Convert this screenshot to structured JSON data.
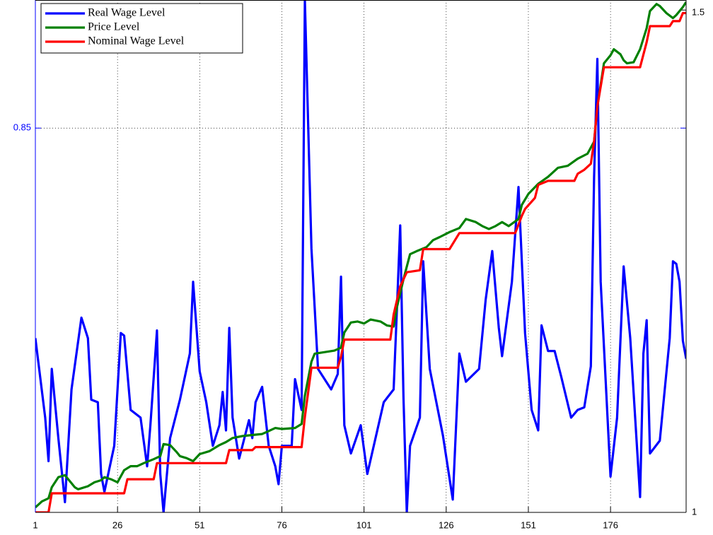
{
  "chart_data": {
    "type": "line",
    "xlim": [
      1,
      199
    ],
    "xticks": [
      1,
      26,
      51,
      76,
      101,
      126,
      151,
      176
    ],
    "ylim": [
      0.7,
      0.9
    ],
    "yticks": [
      0.85
    ],
    "y2lim": [
      1,
      1.51
    ],
    "y2ticks": [
      1,
      1.5
    ],
    "grid": true,
    "legend": "upper left",
    "series": [
      {
        "name": "Real Wage Level",
        "color": "#0000ff",
        "x": [
          1,
          4,
          5,
          6,
          8,
          10,
          12,
          15,
          17,
          18,
          20,
          21,
          22,
          25,
          27,
          28,
          30,
          33,
          35,
          36,
          38,
          39,
          40,
          42,
          45,
          48,
          49,
          51,
          53,
          55,
          57,
          58,
          59,
          60,
          61,
          63,
          66,
          67,
          68,
          70,
          72,
          74,
          75,
          76,
          79,
          80,
          82,
          83,
          85,
          87,
          91,
          93,
          94,
          95,
          97,
          100,
          102,
          107,
          110,
          111,
          112,
          113,
          114,
          115,
          118,
          119,
          121,
          125,
          128,
          130,
          132,
          136,
          138,
          140,
          142,
          143,
          146,
          148,
          150,
          152,
          154,
          155,
          157,
          159,
          161,
          164,
          166,
          168,
          170,
          171,
          172,
          173,
          176,
          178,
          180,
          182,
          185,
          186,
          187,
          188,
          191,
          194,
          195,
          196,
          197,
          198,
          199
        ],
        "values": [
          0.768,
          0.737,
          0.72,
          0.756,
          0.729,
          0.704,
          0.748,
          0.776,
          0.768,
          0.744,
          0.743,
          0.715,
          0.708,
          0.726,
          0.77,
          0.769,
          0.74,
          0.737,
          0.718,
          0.734,
          0.771,
          0.715,
          0.7,
          0.729,
          0.744,
          0.762,
          0.79,
          0.755,
          0.743,
          0.726,
          0.734,
          0.747,
          0.732,
          0.772,
          0.737,
          0.721,
          0.736,
          0.729,
          0.743,
          0.749,
          0.726,
          0.718,
          0.711,
          0.726,
          0.726,
          0.752,
          0.74,
          0.9,
          0.803,
          0.756,
          0.748,
          0.754,
          0.792,
          0.734,
          0.723,
          0.734,
          0.715,
          0.743,
          0.748,
          0.779,
          0.812,
          0.745,
          0.7,
          0.726,
          0.737,
          0.798,
          0.756,
          0.73,
          0.705,
          0.762,
          0.751,
          0.756,
          0.783,
          0.802,
          0.772,
          0.761,
          0.79,
          0.827,
          0.77,
          0.74,
          0.732,
          0.773,
          0.763,
          0.763,
          0.753,
          0.737,
          0.74,
          0.741,
          0.757,
          0.831,
          0.877,
          0.79,
          0.714,
          0.737,
          0.796,
          0.768,
          0.706,
          0.762,
          0.775,
          0.723,
          0.728,
          0.768,
          0.798,
          0.797,
          0.79,
          0.767,
          0.76
        ]
      },
      {
        "name": "Price Level",
        "color": "#008000",
        "axis": "y2",
        "x": [
          1,
          3,
          5,
          6,
          8,
          10,
          11,
          13,
          14,
          17,
          19,
          21,
          22,
          24,
          26,
          28,
          30,
          32,
          34,
          37,
          39,
          40,
          42,
          44,
          45,
          47,
          49,
          51,
          54,
          57,
          59,
          61,
          64,
          67,
          70,
          72,
          74,
          76,
          80,
          82,
          83,
          85,
          86,
          92,
          94,
          95,
          97,
          99,
          101,
          103,
          106,
          108,
          110,
          111,
          113,
          115,
          117,
          120,
          122,
          124,
          127,
          130,
          132,
          135,
          137,
          139,
          141,
          143,
          145,
          148,
          149,
          151,
          154,
          157,
          160,
          163,
          166,
          169,
          171,
          172,
          174,
          176,
          177,
          179,
          180,
          181,
          183,
          185,
          187,
          188,
          190,
          191,
          193,
          195,
          196,
          198,
          199
        ],
        "values": [
          1.005,
          1.011,
          1.014,
          1.025,
          1.035,
          1.037,
          1.033,
          1.025,
          1.023,
          1.026,
          1.03,
          1.032,
          1.035,
          1.033,
          1.03,
          1.042,
          1.046,
          1.046,
          1.049,
          1.053,
          1.056,
          1.068,
          1.067,
          1.06,
          1.056,
          1.054,
          1.051,
          1.058,
          1.061,
          1.067,
          1.07,
          1.074,
          1.076,
          1.077,
          1.078,
          1.081,
          1.084,
          1.083,
          1.084,
          1.088,
          1.116,
          1.15,
          1.158,
          1.161,
          1.164,
          1.179,
          1.189,
          1.19,
          1.188,
          1.192,
          1.19,
          1.186,
          1.185,
          1.204,
          1.232,
          1.257,
          1.26,
          1.264,
          1.271,
          1.274,
          1.279,
          1.283,
          1.292,
          1.289,
          1.285,
          1.282,
          1.285,
          1.289,
          1.285,
          1.292,
          1.306,
          1.317,
          1.327,
          1.334,
          1.343,
          1.345,
          1.352,
          1.357,
          1.369,
          1.404,
          1.447,
          1.455,
          1.461,
          1.456,
          1.45,
          1.447,
          1.448,
          1.461,
          1.482,
          1.499,
          1.506,
          1.504,
          1.497,
          1.492,
          1.495,
          1.503,
          1.508
        ]
      },
      {
        "name": "Nominal Wage Level",
        "color": "#ff0000",
        "axis": "y2",
        "x": [
          1,
          5,
          6,
          28,
          29,
          37,
          38,
          59,
          60,
          67,
          68,
          82,
          83,
          85,
          93,
          94,
          95,
          109,
          110,
          112,
          114,
          118,
          119,
          127,
          130,
          147,
          149,
          150,
          153,
          154,
          157,
          165,
          166,
          168,
          170,
          171,
          172,
          174,
          185,
          187,
          188,
          194,
          195,
          197,
          198,
          199
        ],
        "values": [
          1.0,
          1.0,
          1.019,
          1.019,
          1.033,
          1.033,
          1.049,
          1.049,
          1.062,
          1.062,
          1.065,
          1.065,
          1.095,
          1.144,
          1.144,
          1.155,
          1.172,
          1.172,
          1.197,
          1.225,
          1.239,
          1.241,
          1.262,
          1.262,
          1.278,
          1.278,
          1.295,
          1.302,
          1.313,
          1.326,
          1.33,
          1.33,
          1.337,
          1.341,
          1.347,
          1.369,
          1.404,
          1.443,
          1.443,
          1.468,
          1.484,
          1.484,
          1.489,
          1.489,
          1.497,
          1.497
        ]
      }
    ]
  }
}
